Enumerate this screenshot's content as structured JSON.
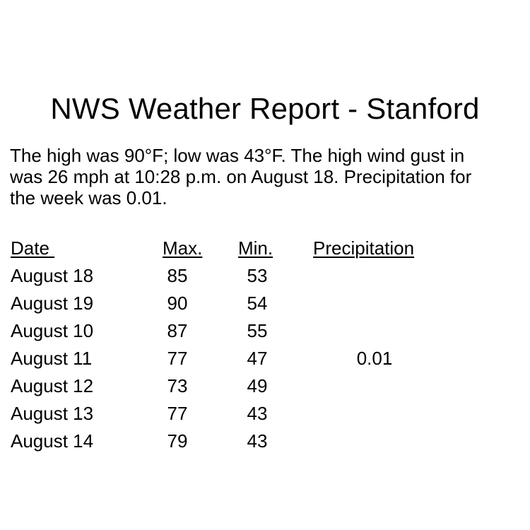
{
  "report": {
    "title": "NWS Weather Report - Stanford",
    "summary_lines": [
      "The high was 90°F; low was 43°F. The high wind gust in",
      "was 26 mph at 10:28 p.m. on August 18. Precipitation for",
      "the week was 0.01."
    ]
  },
  "table": {
    "headers": {
      "date": "Date ",
      "max": "Max.",
      "min": "Min.",
      "precipitation": "Precipitation"
    },
    "rows": [
      {
        "date": "August 18",
        "max": "85",
        "min": "53",
        "precipitation": ""
      },
      {
        "date": "August 19",
        "max": "90",
        "min": "54",
        "precipitation": ""
      },
      {
        "date": "August 10",
        "max": "87",
        "min": "55",
        "precipitation": ""
      },
      {
        "date": "August 11",
        "max": "77",
        "min": "47",
        "precipitation": "0.01"
      },
      {
        "date": "August 12",
        "max": "73",
        "min": "49",
        "precipitation": ""
      },
      {
        "date": "August 13",
        "max": "77",
        "min": "43",
        "precipitation": ""
      },
      {
        "date": "August 14",
        "max": "79",
        "min": "43",
        "precipitation": ""
      }
    ]
  }
}
